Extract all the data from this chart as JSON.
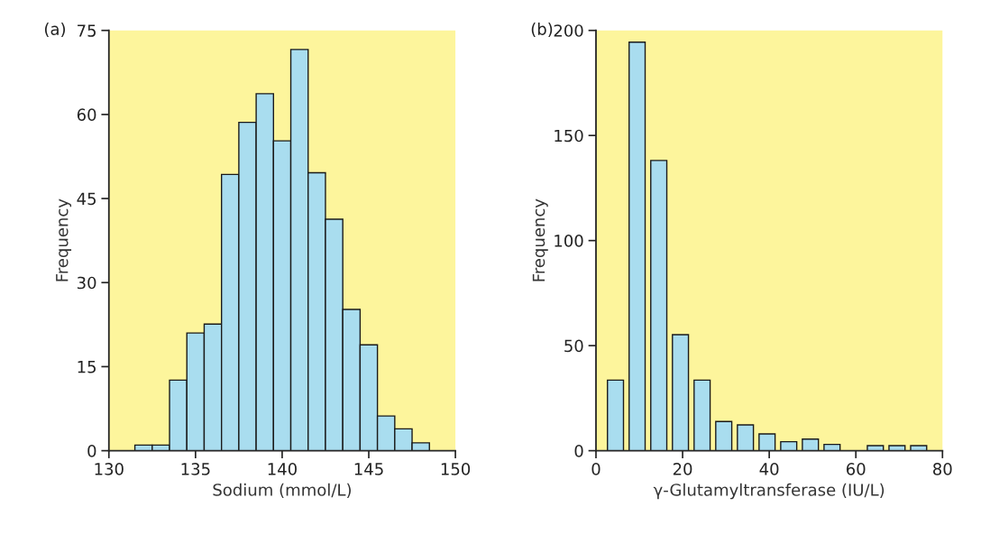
{
  "chart_data": [
    {
      "type": "histogram",
      "title": "(a)",
      "xlabel": "Sodium (mmol/L)",
      "ylabel": "Frequency",
      "bins": [
        131.5,
        132.5,
        133.5,
        134.5,
        135.5,
        136.5,
        137.5,
        138.5,
        139.5,
        140.5,
        141.5,
        142.5,
        143.5,
        144.5,
        145.5,
        146.5,
        147.5,
        148.5
      ],
      "values": [
        1,
        1,
        12.6,
        21,
        22.6,
        49.3,
        58.6,
        63.7,
        55.3,
        71.6,
        49.6,
        41.3,
        25.2,
        18.9,
        6.2,
        3.9,
        1.4
      ],
      "color": "#a9ddef",
      "xlim": [
        130,
        150
      ],
      "xticks": [
        130,
        135,
        140,
        145,
        150
      ],
      "ylim": [
        0,
        75
      ],
      "yticks": [
        0,
        15,
        30,
        45,
        60,
        75
      ],
      "grid": false,
      "legend": false
    },
    {
      "type": "bar",
      "title": "(b)",
      "xlabel": "γ-Glutamyltransferase (IU/L)",
      "ylabel": "Frequency",
      "x": [
        4.5,
        9.5,
        14.5,
        19.5,
        24.5,
        29.5,
        34.5,
        39.5,
        44.5,
        49.5,
        54.5,
        64.5,
        69.5,
        74.5
      ],
      "values": [
        33.6,
        194.4,
        138.1,
        55.2,
        33.6,
        13.9,
        12.3,
        8.0,
        4.3,
        5.5,
        3.0,
        2.4,
        2.4,
        2.4
      ],
      "color": "#a9ddef",
      "xlim": [
        0,
        80
      ],
      "xticks": [
        0,
        20,
        40,
        60,
        80
      ],
      "ylim": [
        0,
        200
      ],
      "yticks": [
        0,
        50,
        100,
        150,
        200
      ],
      "grid": false,
      "legend": false
    }
  ]
}
